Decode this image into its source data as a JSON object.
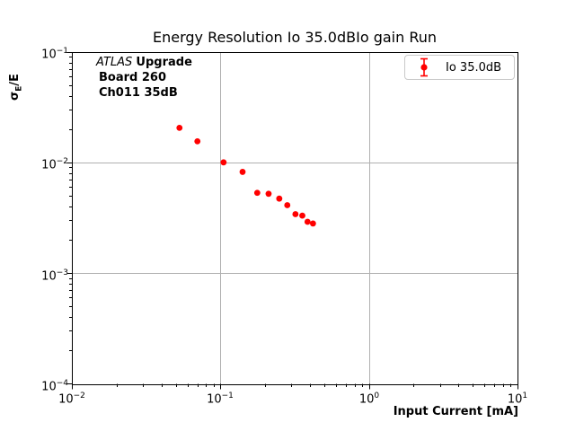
{
  "title": "Energy Resolution Io 35.0dBIo gain Run",
  "annotation": {
    "atlas": "ATLAS",
    "upgrade": "Upgrade",
    "line2": "Board 260",
    "line3": "Ch011 35dB"
  },
  "legend": {
    "entries": [
      {
        "label": "Io 35.0dB",
        "marker": "errorbar-circle",
        "color": "#ff0000"
      }
    ]
  },
  "axes": {
    "x": {
      "label": "Input Current [mA]",
      "scale": "log",
      "ticks": [
        {
          "base": "10",
          "exp": "−2"
        },
        {
          "base": "10",
          "exp": "−1"
        },
        {
          "base": "10",
          "exp": "0"
        },
        {
          "base": "10",
          "exp": "1"
        }
      ]
    },
    "y": {
      "label_sigma": "σ",
      "label_sub": "E",
      "label_rest": "/E",
      "scale": "log",
      "ticks": [
        {
          "base": "10",
          "exp": "−1"
        },
        {
          "base": "10",
          "exp": "−2"
        },
        {
          "base": "10",
          "exp": "−3"
        },
        {
          "base": "10",
          "exp": "−4"
        }
      ]
    }
  },
  "colors": {
    "marker": "#ff0000",
    "grid": "#b0b0b0",
    "axis": "#000000",
    "legend_border": "#c9c9c9",
    "background": "#ffffff"
  },
  "chart_data": {
    "type": "scatter",
    "title": "Energy Resolution Io 35.0dBIo gain Run",
    "xlabel": "Input Current [mA]",
    "ylabel": "σE/E",
    "xscale": "log",
    "yscale": "log",
    "xlim": [
      0.01,
      10
    ],
    "ylim": [
      0.0001,
      0.1
    ],
    "grid": true,
    "legend_position": "upper right",
    "series": [
      {
        "name": "Io 35.0dB",
        "color": "#ff0000",
        "marker": "circle-errorbar",
        "x": [
          0.053,
          0.07,
          0.105,
          0.141,
          0.177,
          0.211,
          0.249,
          0.282,
          0.32,
          0.356,
          0.386,
          0.42
        ],
        "y": [
          0.0205,
          0.0155,
          0.01,
          0.0082,
          0.0053,
          0.0052,
          0.0047,
          0.0041,
          0.0034,
          0.0033,
          0.0029,
          0.0028
        ]
      }
    ]
  }
}
